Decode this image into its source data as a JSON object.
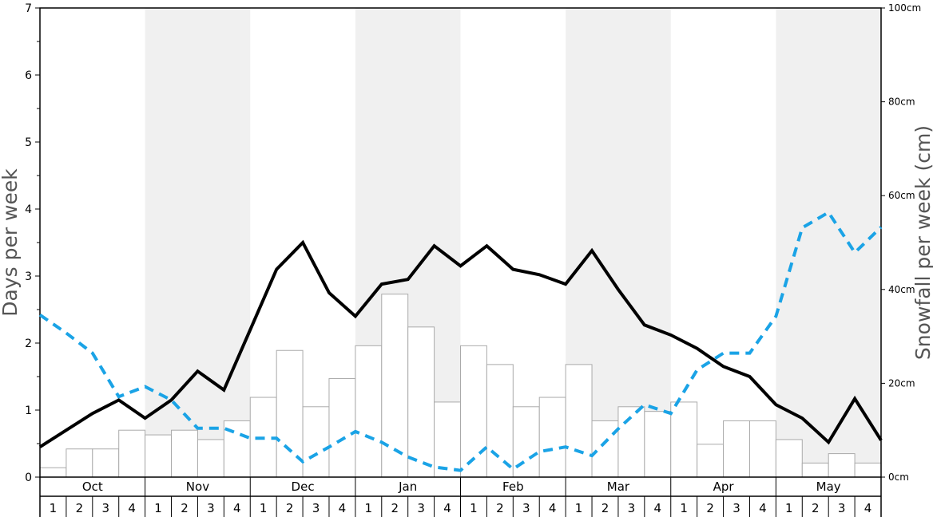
{
  "chart_data": {
    "type": "bar",
    "ylabel_left": "Days per week",
    "ylabel_right": "Snowfall per week (cm)",
    "ylim_left": [
      0,
      7
    ],
    "ylim_right": [
      0,
      100
    ],
    "left_ticks": [
      "0",
      "1",
      "2",
      "3",
      "4",
      "5",
      "6",
      "7"
    ],
    "right_ticks": [
      "0cm",
      "20cm",
      "40cm",
      "60cm",
      "80cm",
      "100cm"
    ],
    "months": [
      "Oct",
      "Nov",
      "Dec",
      "Jan",
      "Feb",
      "Mar",
      "Apr",
      "May"
    ],
    "week_labels": [
      "1",
      "2",
      "3",
      "4"
    ],
    "shaded_months": [
      "Nov",
      "Jan",
      "Mar",
      "May"
    ],
    "colors": {
      "bars_fill": "#ffffff",
      "bars_stroke": "#aaaaaa",
      "line_solid": "#000000",
      "line_dashed": "#1aa3e6",
      "shade": "#f0f0f0",
      "axis_label": "#555555"
    },
    "snowfall_cm": [
      2,
      6,
      6,
      10,
      9,
      10,
      8,
      12,
      17,
      27,
      15,
      21,
      28,
      39,
      32,
      16,
      28,
      24,
      15,
      17,
      24,
      12,
      15,
      14,
      16,
      7,
      12,
      12,
      8,
      3,
      5,
      3
    ],
    "series": [
      {
        "values": [
          0.45,
          0.7,
          0.95,
          1.15,
          0.88,
          1.15,
          1.58,
          1.3,
          2.2,
          3.1,
          3.5,
          2.75,
          2.4,
          2.88,
          2.95,
          3.45,
          3.15,
          3.45,
          3.1,
          3.02,
          2.88,
          3.38,
          2.8,
          2.27,
          2.12,
          1.92,
          1.65,
          1.5,
          1.08,
          0.88,
          0.52,
          1.17,
          0.55
        ]
      },
      {
        "values": [
          2.42,
          2.15,
          1.85,
          1.2,
          1.35,
          1.15,
          0.73,
          0.73,
          0.58,
          0.58,
          0.23,
          0.45,
          0.68,
          0.52,
          0.3,
          0.15,
          0.1,
          0.45,
          0.12,
          0.38,
          0.45,
          0.32,
          0.72,
          1.08,
          0.95,
          1.6,
          1.85,
          1.85,
          2.4,
          3.72,
          3.95,
          3.35,
          3.73
        ]
      }
    ]
  }
}
